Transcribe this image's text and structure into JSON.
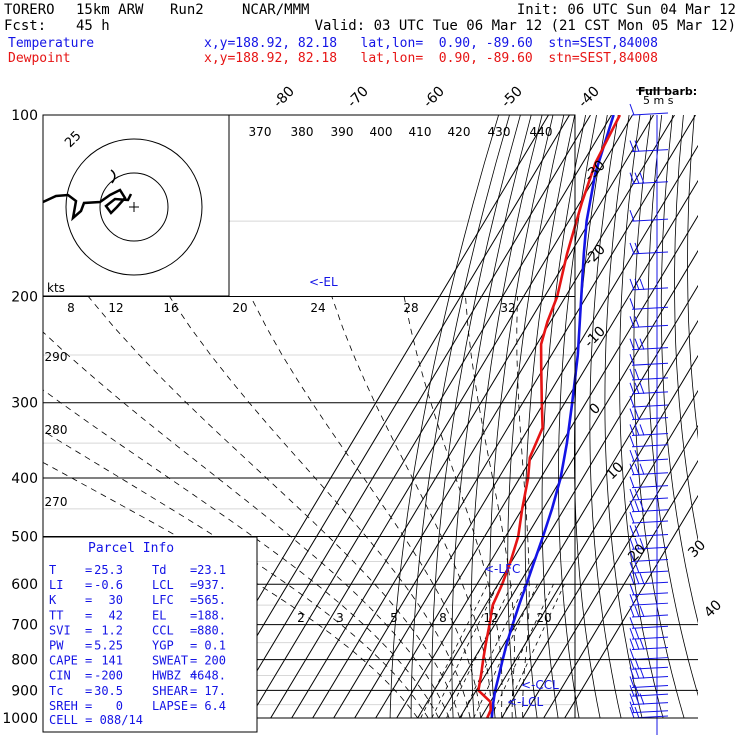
{
  "header": {
    "model": "TORERO",
    "resolution": "15km ARW",
    "run": "Run2",
    "org": "NCAR/MMM",
    "init": "Init: 06 UTC Sun 04 Mar 12",
    "fcst_label": "Fcst:",
    "fcst_value": "45 h",
    "valid": "Valid: 03 UTC Tue 06 Mar 12 (21 CST Mon 05 Mar 12)",
    "temperature_label": "Temperature",
    "dewpoint_label": "Dewpoint",
    "location_line": "x,y=188.92, 82.18   lat,lon=  0.90, -89.60  stn=SEST,84008",
    "temperature_color": "#1414e6",
    "dewpoint_color": "#e61414"
  },
  "chart_data": {
    "type": "line",
    "subtype": "skew-T log-P sounding",
    "y_axis": {
      "quantity": "pressure (hPa)",
      "scale": "log",
      "range": [
        1000,
        100
      ],
      "ticks": [
        100,
        200,
        300,
        400,
        500,
        600,
        700,
        800,
        900,
        1000
      ]
    },
    "isotherm_labels": [
      "-80",
      "-70",
      "-60",
      "-50",
      "-40",
      "-30",
      "-20",
      "-10",
      "0",
      "10",
      "20",
      "30",
      "40"
    ],
    "theta_labels": [
      "370",
      "380",
      "390",
      "400",
      "410",
      "420",
      "430",
      "440",
      "290",
      "280",
      "270"
    ],
    "mixing_ratio_labels": [
      "2",
      "3",
      "5",
      "8",
      "12",
      "20"
    ],
    "hodograph_speed_labels": [
      "8",
      "12",
      "16",
      "20",
      "24",
      "28",
      "32"
    ],
    "hodograph": {
      "unit": "kts",
      "ring_label": "25"
    },
    "annotations": {
      "el": "<-EL",
      "lfc": "<-LFC",
      "ccl": "<-CCL",
      "lcl": "<-LCL",
      "barb_key_title": "Full barb:",
      "barb_key_value": "5 m s"
    },
    "series": [
      {
        "name": "Temperature",
        "color": "#1414e6",
        "points": [
          [
            1000,
            25.3
          ],
          [
            950,
            22.0
          ],
          [
            900,
            19.0
          ],
          [
            850,
            16.5
          ],
          [
            800,
            13.8
          ],
          [
            750,
            11.0
          ],
          [
            700,
            8.5
          ],
          [
            650,
            6.0
          ],
          [
            600,
            3.6
          ],
          [
            550,
            0.8
          ],
          [
            500,
            -2.2
          ],
          [
            450,
            -5.8
          ],
          [
            400,
            -10.5
          ],
          [
            350,
            -17.5
          ],
          [
            300,
            -26.5
          ],
          [
            250,
            -37.5
          ],
          [
            200,
            -52.5
          ],
          [
            170,
            -63.5
          ],
          [
            150,
            -71.5
          ],
          [
            125,
            -81.0
          ],
          [
            100,
            -89.0
          ]
        ]
      },
      {
        "name": "Dewpoint",
        "color": "#e61414",
        "points": [
          [
            1000,
            23.1
          ],
          [
            970,
            22.5
          ],
          [
            940,
            20.0
          ],
          [
            900,
            11.0
          ],
          [
            850,
            8.0
          ],
          [
            800,
            4.5
          ],
          [
            750,
            1.0
          ],
          [
            700,
            -2.5
          ],
          [
            650,
            -6.5
          ],
          [
            600,
            -8.0
          ],
          [
            550,
            -10.5
          ],
          [
            500,
            -14.0
          ],
          [
            450,
            -20.0
          ],
          [
            400,
            -26.0
          ],
          [
            370,
            -31.0
          ],
          [
            330,
            -33.5
          ],
          [
            300,
            -41.0
          ],
          [
            260,
            -52.0
          ],
          [
            240,
            -58.0
          ],
          [
            220,
            -61.5
          ],
          [
            200,
            -64.0
          ],
          [
            170,
            -71.5
          ],
          [
            140,
            -79.0
          ],
          [
            120,
            -84.0
          ],
          [
            100,
            -86.0
          ]
        ]
      }
    ],
    "wind_barbs": [
      100,
      115,
      130,
      150,
      170,
      195,
      210,
      225,
      245,
      260,
      275,
      290,
      305,
      320,
      340,
      355,
      375,
      395,
      415,
      435,
      455,
      475,
      500,
      525,
      550,
      575,
      600,
      625,
      650,
      680,
      710,
      740,
      770,
      800,
      830,
      860,
      890,
      920,
      950,
      980,
      1000
    ]
  },
  "parcel_info": {
    "title": "Parcel Info",
    "rows": [
      [
        "T",
        "=",
        "25.3",
        "Td",
        "=",
        "23.1"
      ],
      [
        "LI",
        "=",
        "-0.6",
        "LCL",
        "=",
        "937."
      ],
      [
        "K",
        "=",
        "30",
        "LFC",
        "=",
        "565."
      ],
      [
        "TT",
        "=",
        "42",
        "EL",
        "=",
        "188."
      ],
      [
        "SVI",
        "=",
        "1.2",
        "CCL",
        "=",
        "880."
      ],
      [
        "PW",
        "=",
        "5.25",
        "YGP",
        "=",
        "0.1"
      ],
      [
        "CAPE",
        "=",
        "141",
        "SWEAT",
        "=",
        "200"
      ],
      [
        "CIN",
        "=",
        "-200",
        "HWBZ",
        "=",
        "4648."
      ],
      [
        "Tc",
        "=",
        "30.5",
        "SHEAR",
        "=",
        "17."
      ],
      [
        "SREH",
        "=",
        "0",
        "LAPSE",
        "=",
        "6.4"
      ]
    ],
    "cell": "CELL = 088/14"
  }
}
